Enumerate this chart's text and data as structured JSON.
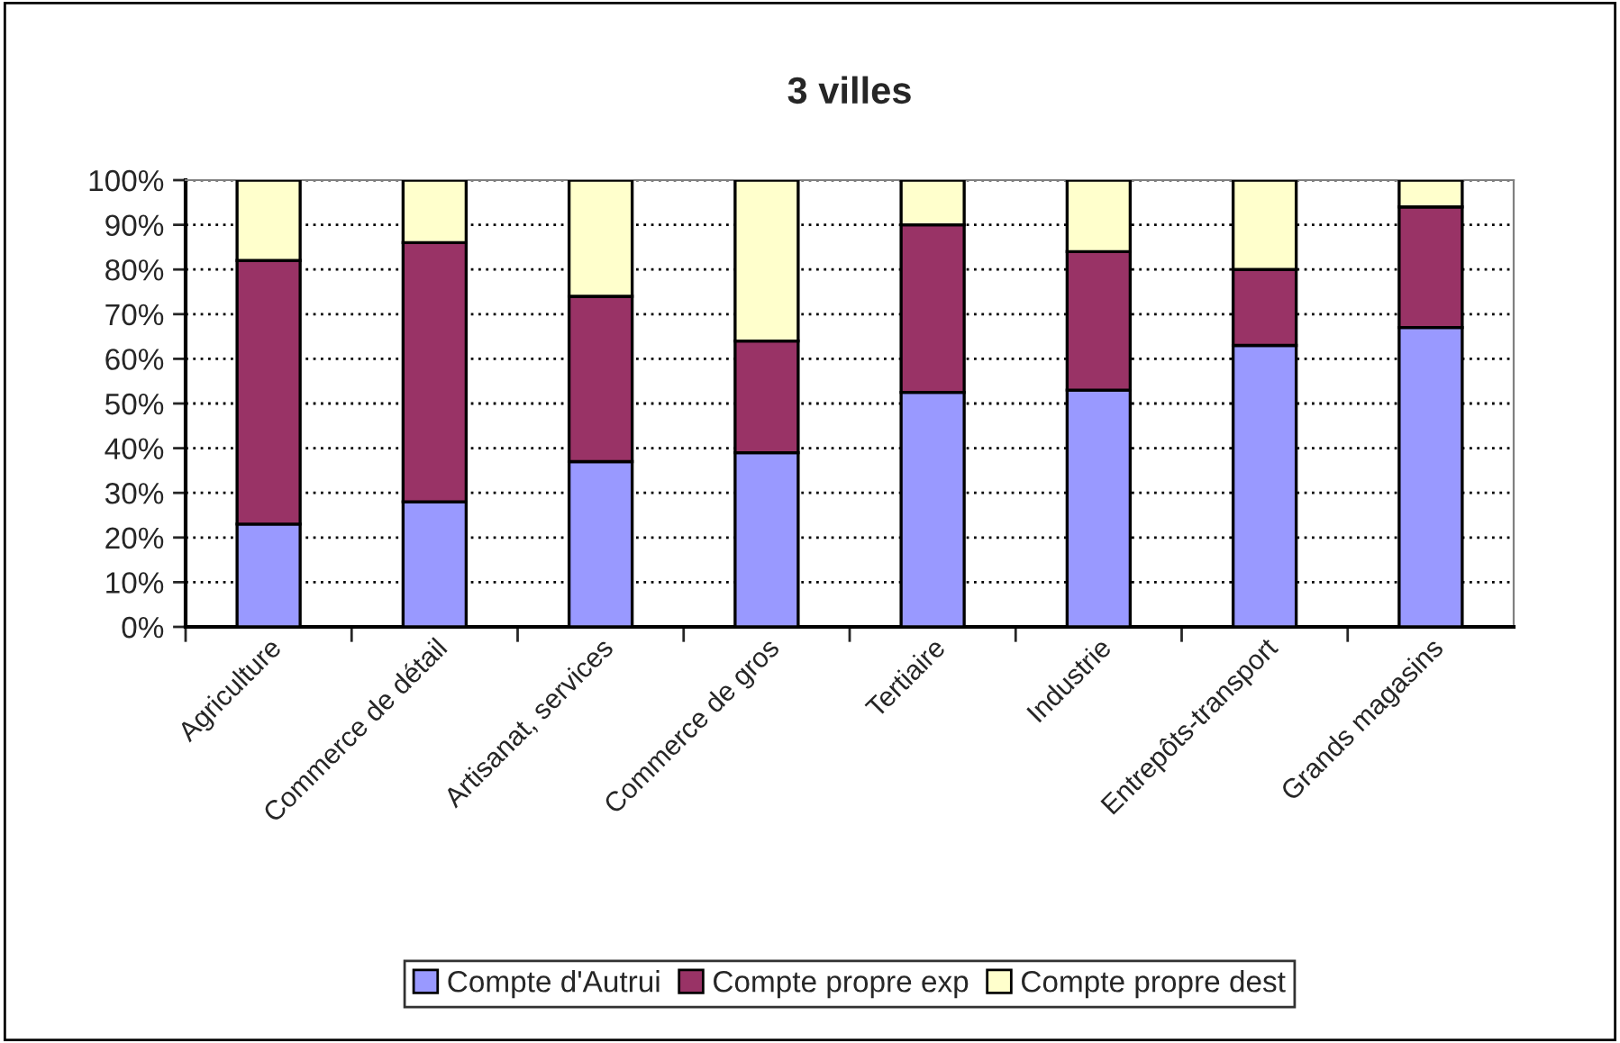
{
  "chart_data": {
    "type": "bar",
    "title": "3 villes",
    "stacked": true,
    "categories": [
      "Agriculture",
      "Commerce de détail",
      "Artisanat, services",
      "Commerce de gros",
      "Tertiaire",
      "Industrie",
      "Entrepôts-transport",
      "Grands magasins"
    ],
    "series": [
      {
        "name": "Compte d'Autrui",
        "color": "#9999ff",
        "values": [
          23,
          28,
          37,
          39,
          52.5,
          53,
          63,
          67
        ]
      },
      {
        "name": "Compte propre exp",
        "color": "#993366",
        "values": [
          59,
          58,
          37,
          25,
          37.5,
          31,
          17,
          27
        ]
      },
      {
        "name": "Compte propre dest",
        "color": "#ffffcc",
        "values": [
          18,
          14,
          26,
          36,
          10,
          16,
          20,
          6
        ]
      }
    ],
    "ylim": [
      0,
      100
    ],
    "yticks": [
      {
        "value": 0,
        "label": "0%"
      },
      {
        "value": 10,
        "label": "10%"
      },
      {
        "value": 20,
        "label": "20%"
      },
      {
        "value": 30,
        "label": "30%"
      },
      {
        "value": 40,
        "label": "40%"
      },
      {
        "value": 50,
        "label": "50%"
      },
      {
        "value": 60,
        "label": "60%"
      },
      {
        "value": 70,
        "label": "70%"
      },
      {
        "value": 80,
        "label": "80%"
      },
      {
        "value": 90,
        "label": "90%"
      },
      {
        "value": 100,
        "label": "100%"
      }
    ],
    "grid": "y",
    "legend": "bottom"
  }
}
